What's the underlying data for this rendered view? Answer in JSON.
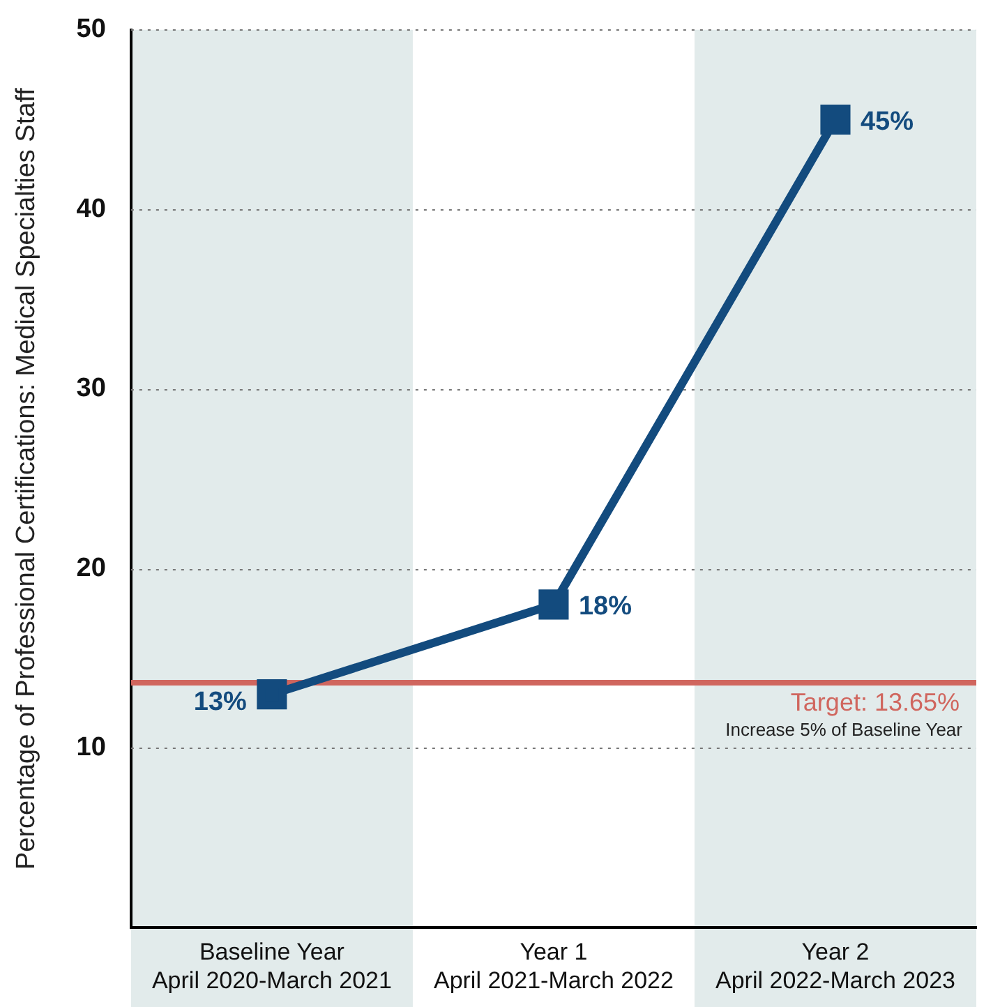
{
  "chart_data": {
    "type": "line",
    "ylabel": "Percentage of Professional Certifications: Medical Specialties Staff",
    "categories": [
      "Baseline Year\nApril 2020-March 2021",
      "Year 1\nApril 2021-March 2022",
      "Year 2\nApril 2022-March 2023"
    ],
    "series": [
      {
        "color": "#134b7e",
        "values": [
          13,
          18,
          45
        ],
        "value_labels": [
          "13%",
          "18%",
          "45%"
        ]
      }
    ],
    "ylim": [
      0,
      50
    ],
    "yticks": [
      10,
      20,
      30,
      40,
      50
    ],
    "grid": "y",
    "marker": "square",
    "line_style": "solid",
    "legend": false,
    "ref_lines": [
      {
        "axis": "y",
        "value": 13.65,
        "label": "Target: 13.65%",
        "color": "#d0665e"
      }
    ],
    "bands": [
      {
        "axis": "x",
        "from": "Baseline Year\nApril 2020-March 2021",
        "to": "Baseline Year\nApril 2020-March 2021",
        "color": "#e2ebeb"
      },
      {
        "axis": "x",
        "from": "Year 2\nApril 2022-March 2023",
        "to": "Year 2\nApril 2022-March 2023",
        "color": "#e2ebeb"
      }
    ],
    "annotations": [
      "Increase 5% of Baseline Year"
    ]
  }
}
